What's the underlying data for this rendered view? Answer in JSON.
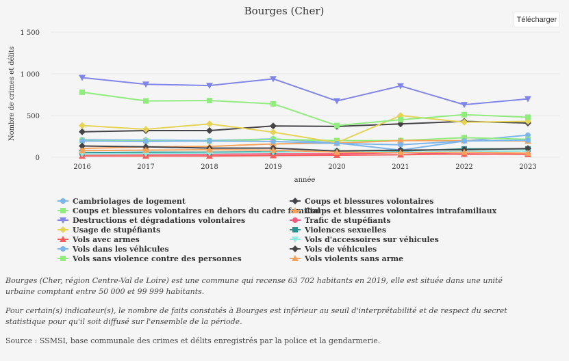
{
  "download_label": "Télécharger",
  "notes": {
    "description": "Bourges (Cher, région Centre-Val de Loire) est une commune qui recense 63 702 habitants en 2019, elle est située dans une unité urbaine comptant entre 50 000 et 99 999 habitants.",
    "threshold": "Pour certain(s) indicateur(s), le nombre de faits constatés à Bourges est inférieur au seuil d'interprétabilité et de respect du secret statistique pour qu'il soit diffusé sur l'ensemble de la période.",
    "source": "Source : SSMSI, base communale des crimes et délits enregistrés par la police et la gendarmerie."
  },
  "chart_data": {
    "type": "line",
    "title": "Bourges (Cher)",
    "xlabel": "année",
    "ylabel": "Nombre de crimes et délits",
    "x": [
      "2016",
      "2017",
      "2018",
      "2019",
      "2020",
      "2021",
      "2022",
      "2023"
    ],
    "ylim": [
      0,
      1500
    ],
    "yticks": [
      0,
      500,
      1000,
      1500
    ],
    "ytick_labels": [
      "0",
      "500",
      "1 000",
      "1 500"
    ],
    "grid": true,
    "series": [
      {
        "name": "Cambriolages de logement",
        "color": "#7cb5ec",
        "marker": "circle",
        "values": [
          210,
          205,
          200,
          220,
          170,
          85,
          195,
          265
        ]
      },
      {
        "name": "Coups et blessures volontaires",
        "color": "#434348",
        "marker": "diamond",
        "values": [
          305,
          320,
          320,
          375,
          370,
          400,
          430,
          410
        ]
      },
      {
        "name": "Coups et blessures volontaires en dehors du cadre familial",
        "color": "#90ed7d",
        "marker": "square",
        "values": [
          200,
          195,
          195,
          215,
          200,
          200,
          235,
          215
        ]
      },
      {
        "name": "Coups et blessures volontaires intrafamiliaux",
        "color": "#f7a35c",
        "marker": "triangle",
        "values": [
          105,
          125,
          130,
          160,
          170,
          200,
          200,
          195
        ]
      },
      {
        "name": "Destructions et dégradations volontaires",
        "color": "#8085e9",
        "marker": "triangle-down",
        "values": [
          955,
          875,
          860,
          940,
          675,
          855,
          630,
          700
        ]
      },
      {
        "name": "Trafic de stupéfiants",
        "color": "#f15c80",
        "marker": "circle",
        "values": [
          35,
          35,
          35,
          40,
          40,
          55,
          35,
          40
        ]
      },
      {
        "name": "Usage de stupéfiants",
        "color": "#e4d354",
        "marker": "diamond",
        "values": [
          380,
          335,
          400,
          300,
          175,
          500,
          420,
          430
        ]
      },
      {
        "name": "Violences sexuelles",
        "color": "#2b908f",
        "marker": "square",
        "values": [
          55,
          60,
          60,
          65,
          70,
          75,
          100,
          100
        ]
      },
      {
        "name": "Vols avec armes",
        "color": "#f45b5b",
        "marker": "triangle",
        "values": [
          15,
          15,
          15,
          20,
          25,
          30,
          40,
          35
        ]
      },
      {
        "name": "Vols d'accessoires sur véhicules",
        "color": "#91e8e1",
        "marker": "triangle-down",
        "values": [
          40,
          45,
          50,
          60,
          70,
          60,
          70,
          75
        ]
      },
      {
        "name": "Vols dans les véhicules",
        "color": "#7cb5ec",
        "marker": "circle",
        "values": [
          195,
          190,
          195,
          190,
          165,
          150,
          195,
          205
        ]
      },
      {
        "name": "Vols de véhicules",
        "color": "#434348",
        "marker": "diamond",
        "values": [
          135,
          125,
          110,
          110,
          75,
          85,
          90,
          105
        ]
      },
      {
        "name": "Vols sans violence contre des personnes",
        "color": "#90ed7d",
        "marker": "square",
        "values": [
          780,
          675,
          680,
          640,
          380,
          450,
          510,
          480
        ]
      },
      {
        "name": "Vols violents sans arme",
        "color": "#f7a35c",
        "marker": "triangle",
        "values": [
          80,
          85,
          90,
          85,
          60,
          55,
          60,
          50
        ]
      }
    ]
  }
}
